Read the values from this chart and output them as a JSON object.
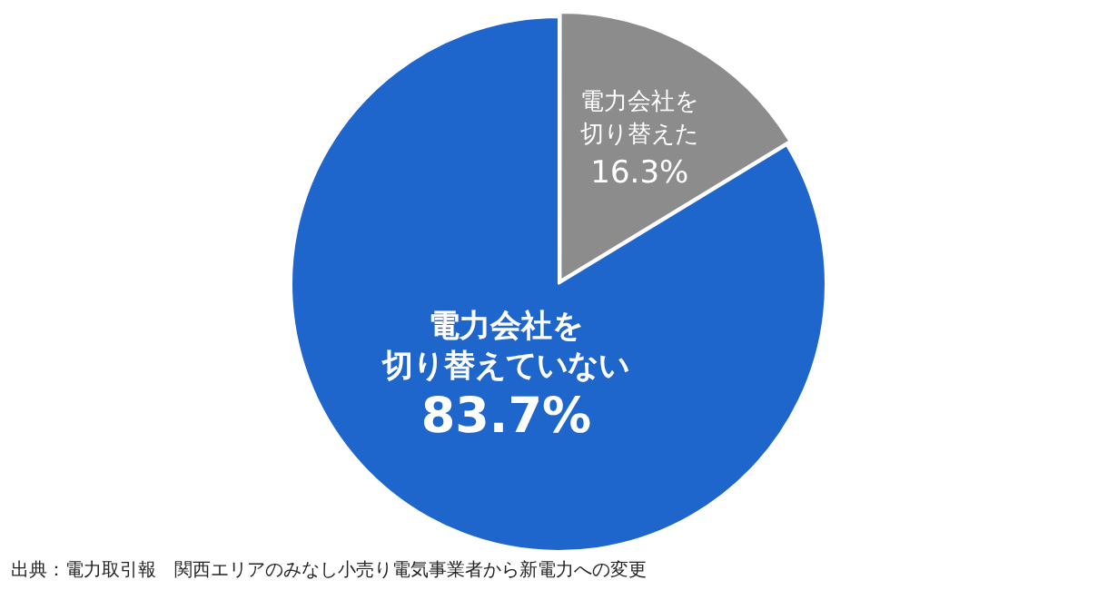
{
  "chart_data": {
    "type": "pie",
    "categories": [
      "電力会社を切り替えた",
      "電力会社を切り替えていない"
    ],
    "values": [
      16.3,
      83.7
    ],
    "colors": [
      "#8c8c8c",
      "#1f66cc"
    ],
    "value_labels": [
      "16.3%",
      "83.7%"
    ],
    "legend": false,
    "annotations": [
      "出典：電力取引報　関西エリアのみなし小売り電気事業者から新電力への変更"
    ]
  }
}
